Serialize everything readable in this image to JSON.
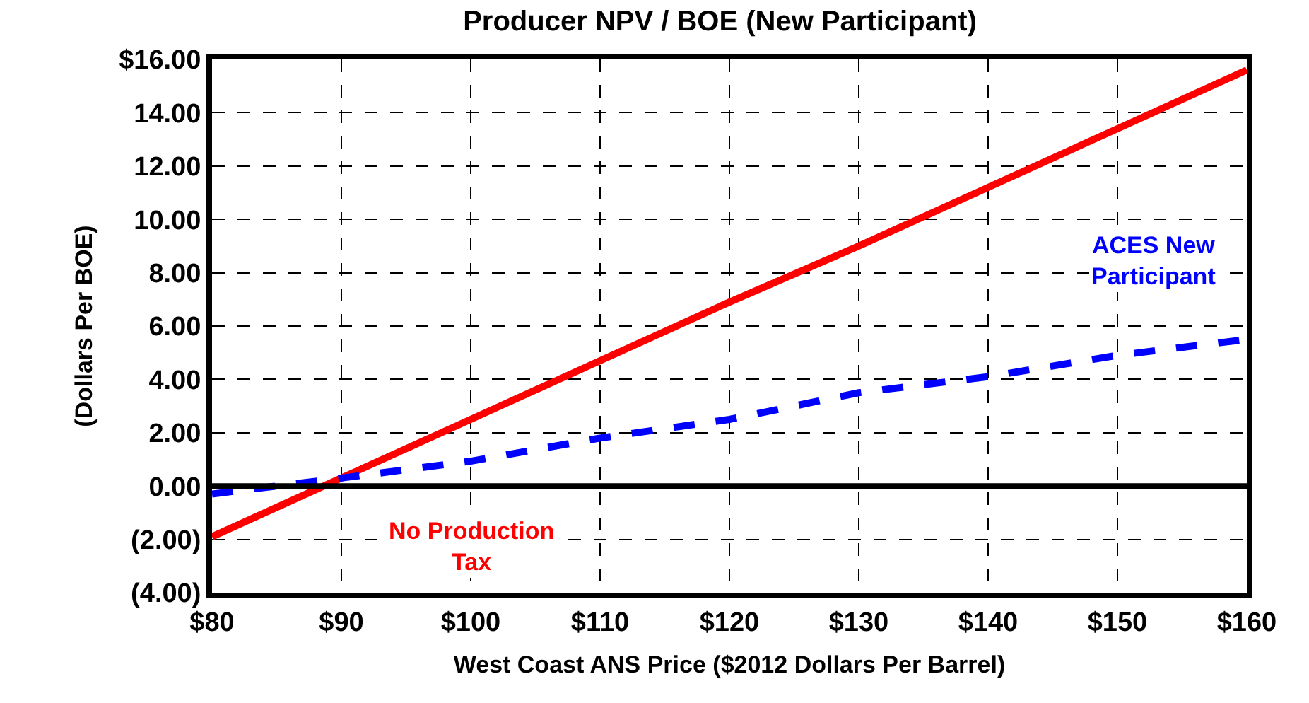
{
  "chart_data": {
    "type": "line",
    "title": "Producer NPV / BOE (New Participant)",
    "xlabel": "West Coast ANS Price ($2012 Dollars Per Barrel)",
    "ylabel": "(Dollars Per BOE)",
    "x": [
      80,
      90,
      100,
      110,
      120,
      130,
      140,
      150,
      160
    ],
    "series": [
      {
        "name": "No Production Tax",
        "color": "#ff0000",
        "line_style": "solid",
        "values": [
          -1.9,
          0.3,
          2.5,
          4.7,
          6.9,
          9.0,
          11.2,
          13.4,
          15.6
        ]
      },
      {
        "name": "ACES New Participant",
        "color": "#0000ff",
        "line_style": "dashed",
        "values": [
          -0.3,
          0.3,
          0.93,
          1.8,
          2.5,
          3.5,
          4.1,
          4.9,
          5.5
        ]
      }
    ],
    "xlim": [
      80,
      160
    ],
    "xticks": [
      {
        "value": 80,
        "label": "$80"
      },
      {
        "value": 90,
        "label": "$90"
      },
      {
        "value": 100,
        "label": "$100"
      },
      {
        "value": 110,
        "label": "$110"
      },
      {
        "value": 120,
        "label": "$120"
      },
      {
        "value": 130,
        "label": "$130"
      },
      {
        "value": 140,
        "label": "$140"
      },
      {
        "value": 150,
        "label": "$150"
      },
      {
        "value": 160,
        "label": "$160"
      }
    ],
    "ylim": [
      -4,
      16
    ],
    "yticks": [
      {
        "value": -4,
        "label": "(4.00)"
      },
      {
        "value": -2,
        "label": "(2.00)"
      },
      {
        "value": 0,
        "label": "0.00"
      },
      {
        "value": 2,
        "label": "2.00"
      },
      {
        "value": 4,
        "label": "4.00"
      },
      {
        "value": 6,
        "label": "6.00"
      },
      {
        "value": 8,
        "label": "8.00"
      },
      {
        "value": 10,
        "label": "10.00"
      },
      {
        "value": 12,
        "label": "12.00"
      },
      {
        "value": 14,
        "label": "14.00"
      },
      {
        "value": 16,
        "label": "$16.00"
      }
    ],
    "ref_lines": [
      {
        "axis": "y",
        "value": 0,
        "color": "#000000"
      }
    ],
    "grid": true,
    "legend": false,
    "marker": "none"
  }
}
